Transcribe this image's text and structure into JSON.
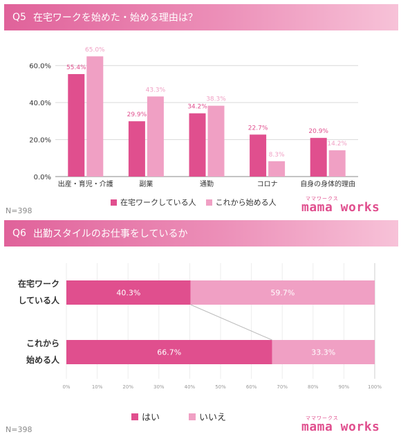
{
  "q5": {
    "num": "Q5",
    "title": "在宅ワークを始めた・始める理由は？",
    "n": "N=398"
  },
  "q6": {
    "num": "Q6",
    "title": "出勤スタイルのお仕事をしているか",
    "n": "N=398"
  },
  "logo": {
    "kana": "ママワークス",
    "word": "mama works"
  },
  "colors": {
    "dark": "#e04f8e",
    "light": "#f0a0c4",
    "banner_start": "#e0629a",
    "banner_end": "#f7c2d8"
  },
  "chart_data": [
    {
      "type": "bar",
      "categories": [
        "出産・育児・介護",
        "副業",
        "通勤",
        "コロナ",
        "自身の身体的理由"
      ],
      "series": [
        {
          "name": "在宅ワークしている人",
          "values": [
            55.4,
            29.9,
            34.2,
            22.7,
            20.9
          ],
          "labels": [
            "55.4%",
            "29.9%",
            "34.2%",
            "22.7%",
            "20.9%"
          ],
          "color": "#e04f8e"
        },
        {
          "name": "これから始める人",
          "values": [
            65.0,
            43.3,
            38.3,
            8.3,
            14.2
          ],
          "labels": [
            "65.0%",
            "43.3%",
            "38.3%",
            "8.3%",
            "14.2%"
          ],
          "color": "#f0a0c4"
        }
      ],
      "ylim": [
        0,
        70
      ],
      "yticks": [
        0,
        20,
        40,
        60
      ],
      "ytick_labels": [
        "0.0%",
        "20.0%",
        "40.0%",
        "60.0%"
      ],
      "grid": true,
      "legend": "bottom"
    },
    {
      "type": "bar",
      "orientation": "horizontal-stacked-100",
      "categories": [
        "在宅ワーク\nしている人",
        "これから\n始める人"
      ],
      "category_lines": [
        [
          "在宅ワーク",
          "している人"
        ],
        [
          "これから",
          "始める人"
        ]
      ],
      "series": [
        {
          "name": "はい",
          "values": [
            40.3,
            66.7
          ],
          "labels": [
            "40.3%",
            "66.7%"
          ],
          "color": "#e04f8e"
        },
        {
          "name": "いいえ",
          "values": [
            59.7,
            33.3
          ],
          "labels": [
            "59.7%",
            "33.3%"
          ],
          "color": "#f0a0c4"
        }
      ],
      "xlim": [
        0,
        100
      ],
      "xticks": [
        0,
        10,
        20,
        30,
        40,
        50,
        60,
        70,
        80,
        90,
        100
      ],
      "xtick_labels": [
        "0%",
        "10%",
        "20%",
        "30%",
        "40%",
        "50%",
        "60%",
        "70%",
        "80%",
        "90%",
        "100%"
      ],
      "grid": true,
      "legend": "bottom"
    }
  ]
}
